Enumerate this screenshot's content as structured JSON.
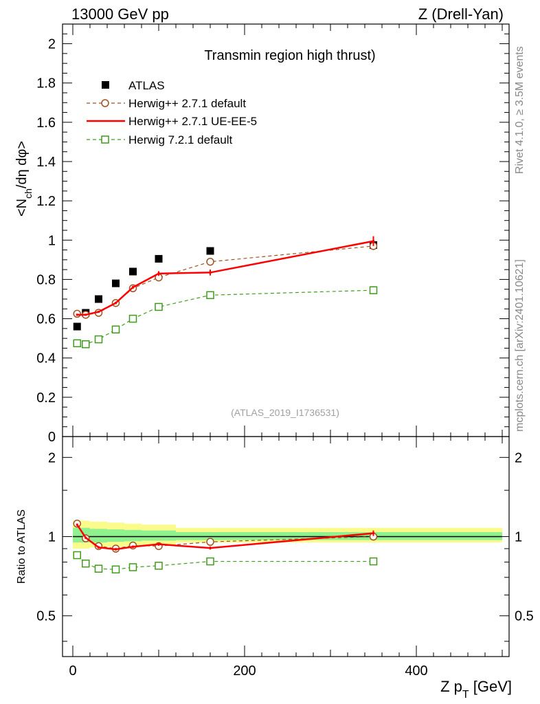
{
  "header": {
    "left": "13000 GeV pp",
    "right": "Z (Drell-Yan)"
  },
  "side_text": {
    "rivet": "Rivet 4.1.0, ≥ 3.5M events",
    "mcplots": "mcplots.cern.ch [arXiv:2401.10621]"
  },
  "colors": {
    "atlas": "#000000",
    "herwig_default": "#a0521e",
    "herwig_ueee5": "#ff0000",
    "herwig7": "#3d9b1a",
    "band_inner": "#8ef28e",
    "band_outer": "#fbfb8c"
  },
  "chart_data": [
    {
      "type": "scatter",
      "panel": "main",
      "title": "Transmin region high thrust)",
      "xlabel": "Z p_T [GeV]",
      "ylabel": "<N_ch/dη dφ>",
      "watermark": "(ATLAS_2019_I1736531)",
      "xlim": [
        -12,
        508
      ],
      "ylim": [
        0,
        2.1
      ],
      "yticks": [
        0,
        0.2,
        0.4,
        0.6,
        0.8,
        1,
        1.2,
        1.4,
        1.6,
        1.8,
        2
      ],
      "ytick_labels": [
        "0",
        "0.2",
        "0.4",
        "0.6",
        "0.8",
        "1",
        "1.2",
        "1.4",
        "1.6",
        "1.8",
        "2"
      ],
      "legend_position": "top-left",
      "series": [
        {
          "name": "ATLAS",
          "style": "filled-square",
          "x": [
            5,
            15,
            30,
            50,
            70,
            100,
            160,
            350
          ],
          "y": [
            0.56,
            0.63,
            0.7,
            0.78,
            0.84,
            0.905,
            0.945,
            0.975
          ]
        },
        {
          "name": "Herwig++ 2.7.1 default",
          "style": "open-circle-dashed",
          "x": [
            5,
            15,
            30,
            50,
            70,
            100,
            160,
            350
          ],
          "y": [
            0.625,
            0.62,
            0.63,
            0.68,
            0.755,
            0.81,
            0.89,
            0.97
          ],
          "err": [
            0.005,
            0.005,
            0.005,
            0.005,
            0.006,
            0.008,
            0.01,
            0.02
          ]
        },
        {
          "name": "Herwig++ 2.7.1 UE-EE-5",
          "style": "solid-line",
          "x": [
            5,
            15,
            30,
            50,
            70,
            100,
            160,
            350
          ],
          "y": [
            0.62,
            0.62,
            0.635,
            0.68,
            0.76,
            0.83,
            0.835,
            0.995
          ],
          "err": [
            0.005,
            0.005,
            0.005,
            0.006,
            0.008,
            0.012,
            0.015,
            0.025
          ]
        },
        {
          "name": "Herwig 7.2.1 default",
          "style": "open-square-dashed",
          "x": [
            5,
            15,
            30,
            50,
            70,
            100,
            160,
            350
          ],
          "y": [
            0.475,
            0.47,
            0.495,
            0.545,
            0.6,
            0.66,
            0.72,
            0.745
          ],
          "err": [
            0.004,
            0.004,
            0.005,
            0.005,
            0.006,
            0.007,
            0.01,
            0.02
          ]
        }
      ]
    },
    {
      "type": "scatter",
      "panel": "ratio",
      "ylabel": "Ratio to ATLAS",
      "xlabel": "Z p_T [GeV]",
      "xlim": [
        -12,
        508
      ],
      "ylim": [
        0.35,
        2.4
      ],
      "yscale": "log",
      "yticks": [
        0.5,
        1,
        2
      ],
      "ytick_labels": [
        "0.5",
        "1",
        "2"
      ],
      "xticks": [
        0,
        200,
        400
      ],
      "xtick_labels": [
        "0",
        "200",
        "400"
      ],
      "bands": {
        "edges": [
          0,
          10,
          20,
          40,
          60,
          80,
          120,
          200,
          500
        ],
        "inner": [
          [
            0.95,
            1.08
          ],
          [
            0.95,
            1.08
          ],
          [
            0.95,
            1.07
          ],
          [
            0.955,
            1.065
          ],
          [
            0.96,
            1.06
          ],
          [
            0.965,
            1.055
          ],
          [
            0.97,
            1.04
          ],
          [
            0.97,
            1.04
          ]
        ],
        "outer": [
          [
            0.9,
            1.15
          ],
          [
            0.9,
            1.15
          ],
          [
            0.91,
            1.14
          ],
          [
            0.915,
            1.13
          ],
          [
            0.92,
            1.12
          ],
          [
            0.93,
            1.11
          ],
          [
            0.95,
            1.08
          ],
          [
            0.95,
            1.08
          ]
        ]
      },
      "series": [
        {
          "name": "Herwig++ 2.7.1 default",
          "x": [
            5,
            15,
            30,
            50,
            70,
            100,
            160,
            350
          ],
          "y": [
            1.12,
            0.985,
            0.92,
            0.9,
            0.925,
            0.92,
            0.955,
            1.0
          ],
          "err": [
            0.01,
            0.01,
            0.01,
            0.01,
            0.01,
            0.01,
            0.012,
            0.02
          ]
        },
        {
          "name": "Herwig++ 2.7.1 UE-EE-5",
          "x": [
            5,
            15,
            30,
            50,
            70,
            100,
            160,
            350
          ],
          "y": [
            1.11,
            0.99,
            0.91,
            0.895,
            0.915,
            0.935,
            0.905,
            1.03
          ],
          "err": [
            0.01,
            0.01,
            0.01,
            0.01,
            0.01,
            0.012,
            0.012,
            0.025
          ]
        },
        {
          "name": "Herwig 7.2.1 default",
          "x": [
            5,
            15,
            30,
            50,
            70,
            100,
            160,
            350
          ],
          "y": [
            0.85,
            0.79,
            0.755,
            0.75,
            0.765,
            0.775,
            0.805,
            0.805
          ],
          "err": [
            0.008,
            0.008,
            0.008,
            0.008,
            0.008,
            0.008,
            0.01,
            0.015
          ]
        }
      ]
    }
  ]
}
